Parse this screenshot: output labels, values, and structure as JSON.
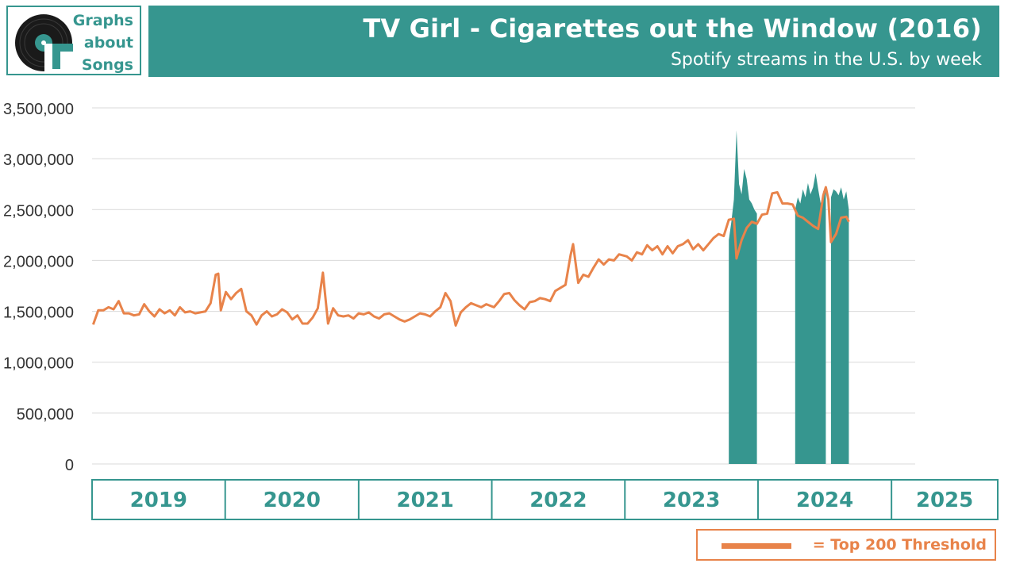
{
  "logo": {
    "line1": "Graphs",
    "line2": "about",
    "line3": "Songs"
  },
  "header": {
    "title": "TV Girl - Cigarettes out the Window (2016)",
    "subtitle": "Spotify streams in the U.S. by week"
  },
  "legend": {
    "label": "= Top 200 Threshold"
  },
  "colors": {
    "accent": "#36968f",
    "line": "#e8834a",
    "grid": "#d9d9d9"
  },
  "chart_data": {
    "type": "area",
    "title": "TV Girl - Cigarettes out the Window (2016)",
    "subtitle": "Spotify streams in the U.S. by week",
    "ylim": [
      0,
      3500000
    ],
    "yticks": [
      0,
      500000,
      1000000,
      1500000,
      2000000,
      2500000,
      3000000,
      3500000
    ],
    "ytick_labels": [
      "0",
      "500,000",
      "1,000,000",
      "1,500,000",
      "2,000,000",
      "2,500,000",
      "3,000,000",
      "3,500,000"
    ],
    "xlim": [
      "2019-01-01",
      "2025-03-07"
    ],
    "grid": true,
    "legend_position": "bottom-right",
    "year_labels": [
      "2019",
      "2020",
      "2021",
      "2022",
      "2023",
      "2024",
      "2025"
    ],
    "year_boundaries": [
      "2019-01-01",
      "2020-01-01",
      "2021-01-01",
      "2022-01-01",
      "2023-01-01",
      "2024-01-01",
      "2025-01-01",
      "2025-03-07"
    ],
    "series": [
      {
        "kind": "area",
        "points": [
          [
            "2023-10-13",
            2200000
          ],
          [
            "2023-10-20",
            2380000
          ],
          [
            "2023-10-27",
            2600000
          ],
          [
            "2023-11-03",
            3280000
          ],
          [
            "2023-11-10",
            2750000
          ],
          [
            "2023-11-17",
            2650000
          ],
          [
            "2023-11-24",
            2900000
          ],
          [
            "2023-12-01",
            2800000
          ],
          [
            "2023-12-08",
            2600000
          ],
          [
            "2023-12-15",
            2560000
          ],
          [
            "2023-12-22",
            2500000
          ],
          [
            "2023-12-29",
            2460000
          ],
          null,
          [
            "2024-04-12",
            2500000
          ],
          [
            "2024-04-19",
            2620000
          ],
          [
            "2024-04-26",
            2560000
          ],
          [
            "2024-05-03",
            2700000
          ],
          [
            "2024-05-10",
            2620000
          ],
          [
            "2024-05-17",
            2760000
          ],
          [
            "2024-05-24",
            2650000
          ],
          [
            "2024-05-31",
            2720000
          ],
          [
            "2024-06-07",
            2860000
          ],
          [
            "2024-06-14",
            2700000
          ],
          [
            "2024-06-21",
            2560000
          ],
          [
            "2024-06-28",
            2680000
          ],
          [
            "2024-07-05",
            2720000
          ],
          null,
          [
            "2024-07-19",
            2620000
          ],
          [
            "2024-07-26",
            2700000
          ],
          [
            "2024-08-02",
            2680000
          ],
          [
            "2024-08-09",
            2640000
          ],
          [
            "2024-08-16",
            2720000
          ],
          [
            "2024-08-23",
            2600000
          ],
          [
            "2024-08-30",
            2680000
          ],
          [
            "2024-09-06",
            2500000
          ]
        ]
      },
      {
        "kind": "line",
        "points": [
          [
            "2019-01-04",
            1370000
          ],
          [
            "2019-01-18",
            1510000
          ],
          [
            "2019-02-01",
            1510000
          ],
          [
            "2019-02-15",
            1540000
          ],
          [
            "2019-03-01",
            1520000
          ],
          [
            "2019-03-15",
            1600000
          ],
          [
            "2019-03-29",
            1480000
          ],
          [
            "2019-04-12",
            1480000
          ],
          [
            "2019-04-26",
            1460000
          ],
          [
            "2019-05-10",
            1470000
          ],
          [
            "2019-05-24",
            1570000
          ],
          [
            "2019-06-07",
            1500000
          ],
          [
            "2019-06-21",
            1450000
          ],
          [
            "2019-07-05",
            1520000
          ],
          [
            "2019-07-19",
            1480000
          ],
          [
            "2019-08-02",
            1510000
          ],
          [
            "2019-08-16",
            1460000
          ],
          [
            "2019-08-30",
            1540000
          ],
          [
            "2019-09-13",
            1490000
          ],
          [
            "2019-09-27",
            1500000
          ],
          [
            "2019-10-11",
            1480000
          ],
          [
            "2019-10-25",
            1490000
          ],
          [
            "2019-11-08",
            1500000
          ],
          [
            "2019-11-22",
            1580000
          ],
          [
            "2019-12-06",
            1860000
          ],
          [
            "2019-12-13",
            1870000
          ],
          [
            "2019-12-20",
            1510000
          ],
          [
            "2020-01-03",
            1690000
          ],
          [
            "2020-01-17",
            1620000
          ],
          [
            "2020-01-31",
            1680000
          ],
          [
            "2020-02-14",
            1720000
          ],
          [
            "2020-02-28",
            1500000
          ],
          [
            "2020-03-13",
            1460000
          ],
          [
            "2020-03-27",
            1370000
          ],
          [
            "2020-04-10",
            1460000
          ],
          [
            "2020-04-24",
            1500000
          ],
          [
            "2020-05-08",
            1450000
          ],
          [
            "2020-05-22",
            1470000
          ],
          [
            "2020-06-05",
            1520000
          ],
          [
            "2020-06-19",
            1490000
          ],
          [
            "2020-07-03",
            1420000
          ],
          [
            "2020-07-17",
            1460000
          ],
          [
            "2020-07-31",
            1380000
          ],
          [
            "2020-08-14",
            1380000
          ],
          [
            "2020-08-28",
            1440000
          ],
          [
            "2020-09-11",
            1530000
          ],
          [
            "2020-09-25",
            1880000
          ],
          [
            "2020-10-09",
            1380000
          ],
          [
            "2020-10-23",
            1530000
          ],
          [
            "2020-11-06",
            1460000
          ],
          [
            "2020-11-20",
            1450000
          ],
          [
            "2020-12-04",
            1460000
          ],
          [
            "2020-12-18",
            1430000
          ],
          [
            "2021-01-01",
            1480000
          ],
          [
            "2021-01-15",
            1470000
          ],
          [
            "2021-01-29",
            1490000
          ],
          [
            "2021-02-12",
            1450000
          ],
          [
            "2021-02-26",
            1430000
          ],
          [
            "2021-03-12",
            1470000
          ],
          [
            "2021-03-26",
            1480000
          ],
          [
            "2021-04-09",
            1450000
          ],
          [
            "2021-04-23",
            1420000
          ],
          [
            "2021-05-07",
            1400000
          ],
          [
            "2021-05-21",
            1420000
          ],
          [
            "2021-06-04",
            1450000
          ],
          [
            "2021-06-18",
            1480000
          ],
          [
            "2021-07-02",
            1470000
          ],
          [
            "2021-07-16",
            1450000
          ],
          [
            "2021-07-30",
            1500000
          ],
          [
            "2021-08-13",
            1540000
          ],
          [
            "2021-08-27",
            1680000
          ],
          [
            "2021-09-10",
            1600000
          ],
          [
            "2021-09-24",
            1360000
          ],
          [
            "2021-10-08",
            1490000
          ],
          [
            "2021-10-22",
            1540000
          ],
          [
            "2021-11-05",
            1580000
          ],
          [
            "2021-11-19",
            1560000
          ],
          [
            "2021-12-03",
            1540000
          ],
          [
            "2021-12-17",
            1570000
          ],
          [
            "2022-01-07",
            1540000
          ],
          [
            "2022-01-21",
            1600000
          ],
          [
            "2022-02-04",
            1670000
          ],
          [
            "2022-02-18",
            1680000
          ],
          [
            "2022-03-04",
            1610000
          ],
          [
            "2022-03-18",
            1560000
          ],
          [
            "2022-04-01",
            1520000
          ],
          [
            "2022-04-15",
            1590000
          ],
          [
            "2022-04-29",
            1600000
          ],
          [
            "2022-05-13",
            1630000
          ],
          [
            "2022-05-27",
            1620000
          ],
          [
            "2022-06-10",
            1600000
          ],
          [
            "2022-06-24",
            1700000
          ],
          [
            "2022-07-08",
            1730000
          ],
          [
            "2022-07-22",
            1760000
          ],
          [
            "2022-08-05",
            2050000
          ],
          [
            "2022-08-12",
            2160000
          ],
          [
            "2022-08-26",
            1780000
          ],
          [
            "2022-09-09",
            1860000
          ],
          [
            "2022-09-23",
            1840000
          ],
          [
            "2022-10-07",
            1930000
          ],
          [
            "2022-10-21",
            2010000
          ],
          [
            "2022-11-04",
            1960000
          ],
          [
            "2022-11-18",
            2010000
          ],
          [
            "2022-12-02",
            2000000
          ],
          [
            "2022-12-16",
            2060000
          ],
          [
            "2023-01-06",
            2040000
          ],
          [
            "2023-01-20",
            2000000
          ],
          [
            "2023-02-03",
            2080000
          ],
          [
            "2023-02-17",
            2060000
          ],
          [
            "2023-03-03",
            2150000
          ],
          [
            "2023-03-17",
            2100000
          ],
          [
            "2023-03-31",
            2140000
          ],
          [
            "2023-04-14",
            2060000
          ],
          [
            "2023-04-28",
            2140000
          ],
          [
            "2023-05-12",
            2070000
          ],
          [
            "2023-05-26",
            2140000
          ],
          [
            "2023-06-09",
            2160000
          ],
          [
            "2023-06-23",
            2200000
          ],
          [
            "2023-07-07",
            2110000
          ],
          [
            "2023-07-21",
            2160000
          ],
          [
            "2023-08-04",
            2100000
          ],
          [
            "2023-08-18",
            2160000
          ],
          [
            "2023-09-01",
            2220000
          ],
          [
            "2023-09-15",
            2260000
          ],
          [
            "2023-09-29",
            2240000
          ],
          [
            "2023-10-13",
            2400000
          ],
          [
            "2023-10-27",
            2410000
          ],
          [
            "2023-11-03",
            2020000
          ],
          [
            "2023-11-17",
            2200000
          ],
          [
            "2023-12-01",
            2320000
          ],
          [
            "2023-12-15",
            2380000
          ],
          [
            "2023-12-29",
            2360000
          ],
          [
            "2024-01-12",
            2450000
          ],
          [
            "2024-01-26",
            2460000
          ],
          [
            "2024-02-09",
            2660000
          ],
          [
            "2024-02-23",
            2670000
          ],
          [
            "2024-03-08",
            2560000
          ],
          [
            "2024-03-22",
            2560000
          ],
          [
            "2024-04-05",
            2550000
          ],
          [
            "2024-04-19",
            2440000
          ],
          [
            "2024-05-03",
            2420000
          ],
          [
            "2024-05-17",
            2380000
          ],
          [
            "2024-05-31",
            2340000
          ],
          [
            "2024-06-14",
            2310000
          ],
          [
            "2024-06-28",
            2640000
          ],
          [
            "2024-07-05",
            2720000
          ],
          [
            "2024-07-12",
            2600000
          ],
          [
            "2024-07-19",
            2180000
          ],
          [
            "2024-08-02",
            2260000
          ],
          [
            "2024-08-16",
            2420000
          ],
          [
            "2024-08-30",
            2430000
          ],
          [
            "2024-09-06",
            2380000
          ]
        ]
      }
    ]
  }
}
